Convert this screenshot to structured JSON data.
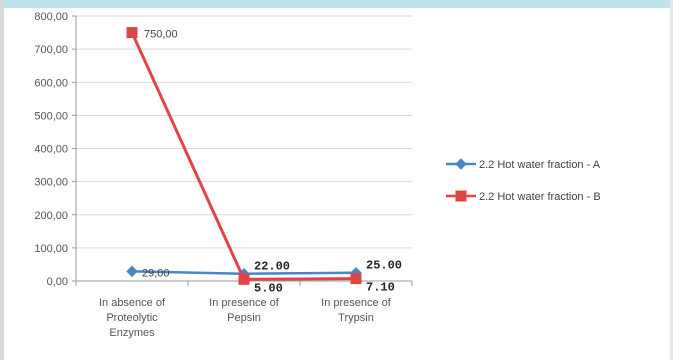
{
  "chart_data": {
    "type": "line",
    "categories": [
      [
        "In absence of",
        "Proteolytic",
        "Enzymes"
      ],
      [
        "In presence of",
        "Pepsin"
      ],
      [
        "In presence of",
        "Trypsin"
      ]
    ],
    "ylim": [
      0,
      800
    ],
    "yticks": [
      "0,00",
      "100,00",
      "200,00",
      "300,00",
      "400,00",
      "500,00",
      "600,00",
      "700,00",
      "800,00"
    ],
    "grid": true,
    "legend_position": "right",
    "series": [
      {
        "name": "2.2 Hot water fraction - A",
        "values": [
          29.0,
          22.0,
          25.0
        ],
        "labels": [
          "29,00",
          "22.00",
          "25.00"
        ],
        "color": "#4a86c5",
        "marker": "diamond"
      },
      {
        "name": "2.2 Hot water fraction  - B",
        "values": [
          750.0,
          5.0,
          7.1
        ],
        "labels": [
          "750,00",
          "5.00",
          "7.10"
        ],
        "color": "#e04545",
        "marker": "square"
      }
    ]
  }
}
